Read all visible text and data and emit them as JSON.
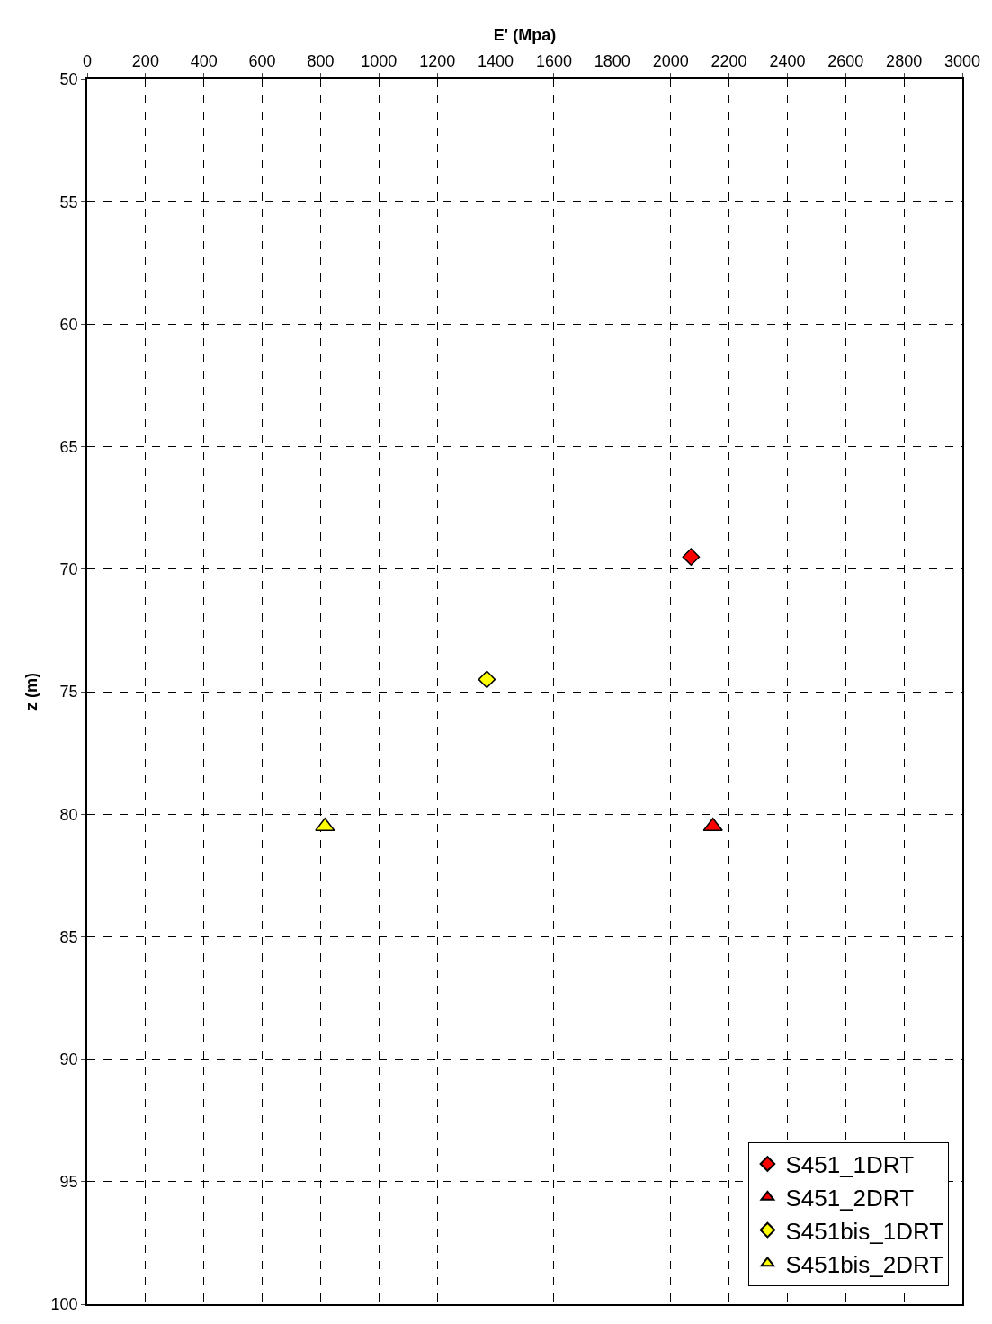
{
  "chart_data": {
    "type": "scatter",
    "xlabel": "E' (Mpa)",
    "ylabel": "z (m)",
    "xlim": [
      0,
      3000
    ],
    "xticks": [
      0,
      200,
      400,
      600,
      800,
      1000,
      1200,
      1400,
      1600,
      1800,
      2000,
      2200,
      2400,
      2600,
      2800,
      3000
    ],
    "ylim": [
      100,
      50
    ],
    "yticks": [
      50,
      55,
      60,
      65,
      70,
      75,
      80,
      85,
      90,
      95,
      100
    ],
    "grid": true,
    "legend": "bottom right",
    "series": [
      {
        "name": "S451_1DRT",
        "color": "#ff0000",
        "marker": "diamond",
        "x": [
          2070
        ],
        "values": [
          69.5
        ]
      },
      {
        "name": "S451_2DRT",
        "color": "#ff0000",
        "marker": "triangle",
        "x": [
          2145
        ],
        "values": [
          80.5
        ]
      },
      {
        "name": "S451bis_1DRT",
        "color": "#ffff00",
        "marker": "diamond",
        "x": [
          1370
        ],
        "values": [
          74.5
        ]
      },
      {
        "name": "S451bis_2DRT",
        "color": "#ffff00",
        "marker": "triangle",
        "x": [
          815
        ],
        "values": [
          80.5
        ]
      }
    ]
  }
}
